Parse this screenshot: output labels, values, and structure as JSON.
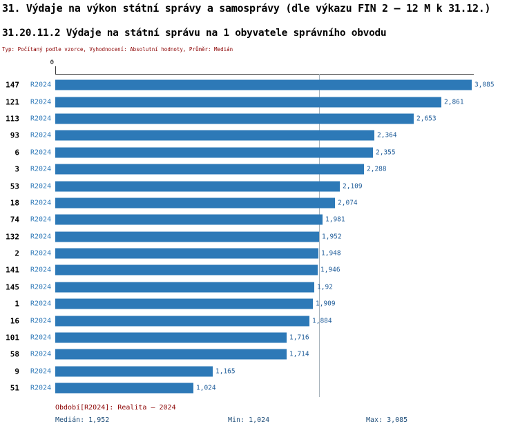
{
  "page": {
    "title": "31. Výdaje na výkon státní správy a samosprávy (dle výkazu FIN 2 – 12 M k 31.12.)",
    "subtitle": "31.20.11.2 Výdaje na státní správu na 1 obyvatele správního obvodu",
    "meta_line": "Typ: Počítaný podle vzorce, Vyhodnocení: Absolutní hodnoty, Průměr: Medián"
  },
  "footer": {
    "period_line": "Období[R2024]: Realita – 2024",
    "median_label": "Medián: 1,952",
    "min_label": "Min: 1,024",
    "max_label": "Max: 3,085"
  },
  "colors": {
    "bar": "#2d79b7",
    "value_text": "#1f5c99",
    "period_text": "#2e79b8",
    "rank_text": "#000000",
    "meta_text": "#8b0000",
    "stats_text": "#1f4e79",
    "median_line": "#a9b4bd",
    "axis": "#3a3a3a"
  },
  "chart_data": {
    "type": "bar",
    "orientation": "horizontal",
    "title": "31.20.11.2 Výdaje na státní správu na 1 obyvatele správního obvodu",
    "x_origin_label": "0",
    "xlim": [
      0,
      3100
    ],
    "grid": false,
    "median": 1952,
    "min": 1024,
    "max": 3085,
    "series_label": "R2024",
    "rows": [
      {
        "rank": "147",
        "period": "R2024",
        "value": 3085,
        "value_label": "3,085"
      },
      {
        "rank": "121",
        "period": "R2024",
        "value": 2861,
        "value_label": "2,861"
      },
      {
        "rank": "113",
        "period": "R2024",
        "value": 2653,
        "value_label": "2,653"
      },
      {
        "rank": "93",
        "period": "R2024",
        "value": 2364,
        "value_label": "2,364"
      },
      {
        "rank": "6",
        "period": "R2024",
        "value": 2355,
        "value_label": "2,355"
      },
      {
        "rank": "3",
        "period": "R2024",
        "value": 2288,
        "value_label": "2,288"
      },
      {
        "rank": "53",
        "period": "R2024",
        "value": 2109,
        "value_label": "2,109"
      },
      {
        "rank": "18",
        "period": "R2024",
        "value": 2074,
        "value_label": "2,074"
      },
      {
        "rank": "74",
        "period": "R2024",
        "value": 1981,
        "value_label": "1,981"
      },
      {
        "rank": "132",
        "period": "R2024",
        "value": 1952,
        "value_label": "1,952"
      },
      {
        "rank": "2",
        "period": "R2024",
        "value": 1948,
        "value_label": "1,948"
      },
      {
        "rank": "141",
        "period": "R2024",
        "value": 1946,
        "value_label": "1,946"
      },
      {
        "rank": "145",
        "period": "R2024",
        "value": 1920,
        "value_label": "1,92"
      },
      {
        "rank": "1",
        "period": "R2024",
        "value": 1909,
        "value_label": "1,909"
      },
      {
        "rank": "16",
        "period": "R2024",
        "value": 1884,
        "value_label": "1,884"
      },
      {
        "rank": "101",
        "period": "R2024",
        "value": 1716,
        "value_label": "1,716"
      },
      {
        "rank": "58",
        "period": "R2024",
        "value": 1714,
        "value_label": "1,714"
      },
      {
        "rank": "9",
        "period": "R2024",
        "value": 1165,
        "value_label": "1,165"
      },
      {
        "rank": "51",
        "period": "R2024",
        "value": 1024,
        "value_label": "1,024"
      }
    ]
  }
}
